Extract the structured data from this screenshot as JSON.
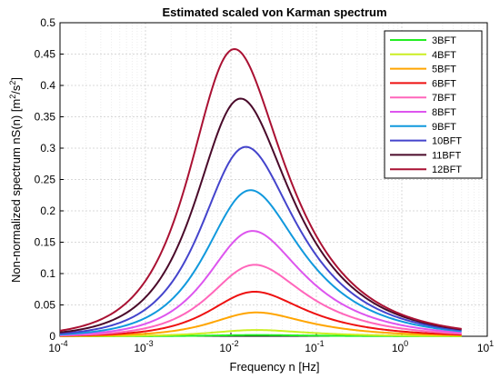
{
  "chart_data": {
    "type": "line",
    "title": "Estimated scaled von Karman spectrum",
    "xlabel": "Frequency n [Hz]",
    "ylabel": "Non-normalized spectrum nS(n) [m²/s²]",
    "xscale": "log",
    "xlim": [
      0.0001,
      10
    ],
    "ylim": [
      0,
      0.5
    ],
    "x_ticks": [
      "10^-4",
      "10^-3",
      "10^-2",
      "10^-1",
      "10^0",
      "10^1"
    ],
    "y_ticks": [
      "0",
      "0.05",
      "0.1",
      "0.15",
      "0.2",
      "0.25",
      "0.3",
      "0.35",
      "0.4",
      "0.45",
      "0.5"
    ],
    "grid": true,
    "legend_position": "top-right",
    "x_range_of_curves": [
      0.0001,
      5
    ],
    "series": [
      {
        "name": "3BFT",
        "color": "#22ee22",
        "peak_x": 0.02,
        "peak_y": 0.002
      },
      {
        "name": "4BFT",
        "color": "#ccee22",
        "peak_x": 0.02,
        "peak_y": 0.01
      },
      {
        "name": "5BFT",
        "color": "#ffa500",
        "peak_x": 0.02,
        "peak_y": 0.038
      },
      {
        "name": "6BFT",
        "color": "#ee1111",
        "peak_x": 0.019,
        "peak_y": 0.071
      },
      {
        "name": "7BFT",
        "color": "#ff66bb",
        "peak_x": 0.019,
        "peak_y": 0.114
      },
      {
        "name": "8BFT",
        "color": "#dd55ee",
        "peak_x": 0.018,
        "peak_y": 0.168
      },
      {
        "name": "9BFT",
        "color": "#1199dd",
        "peak_x": 0.017,
        "peak_y": 0.233
      },
      {
        "name": "10BFT",
        "color": "#4444cc",
        "peak_x": 0.015,
        "peak_y": 0.302
      },
      {
        "name": "11BFT",
        "color": "#4a0a2a",
        "peak_x": 0.013,
        "peak_y": 0.379
      },
      {
        "name": "12BFT",
        "color": "#aa1133",
        "peak_x": 0.011,
        "peak_y": 0.458
      }
    ]
  }
}
